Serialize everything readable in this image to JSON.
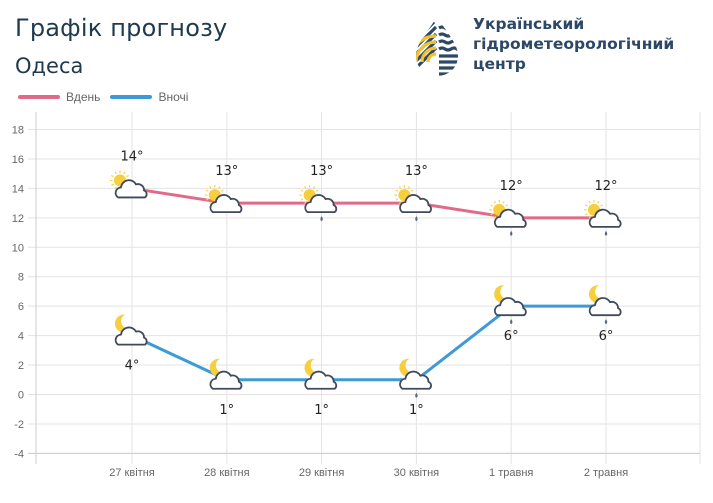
{
  "header": {
    "title": "Графік прогнозу",
    "city": "Одеса"
  },
  "logo": {
    "icon": "drop-logo-icon",
    "org_line1": "Український",
    "org_line2": "гідрометеорологічний",
    "org_line3": "центр"
  },
  "legend": [
    {
      "label": "Вдень",
      "color": "#e06b88"
    },
    {
      "label": "Вночі",
      "color": "#3d9ad6"
    }
  ],
  "chart_data": {
    "type": "line",
    "title": "Графік прогнозу — Одеса",
    "categories": [
      "27 квітня",
      "28 квітня",
      "29 квітня",
      "30 квітня",
      "1 травня",
      "2 травня"
    ],
    "series": [
      {
        "name": "Вдень",
        "color": "#e06b88",
        "values": [
          14,
          13,
          13,
          13,
          12,
          12
        ],
        "labels": [
          "14°",
          "13°",
          "13°",
          "13°",
          "12°",
          "12°"
        ],
        "icons": [
          "partly-cloudy-day",
          "partly-cloudy-day",
          "partly-cloudy-day-rain",
          "partly-cloudy-day-rain",
          "partly-cloudy-day-rain",
          "partly-cloudy-day-rain"
        ]
      },
      {
        "name": "Вночі",
        "color": "#3d9ad6",
        "values": [
          4,
          1,
          1,
          1,
          6,
          6
        ],
        "labels": [
          "4°",
          "1°",
          "1°",
          "1°",
          "6°",
          "6°"
        ],
        "icons": [
          "partly-cloudy-night",
          "partly-cloudy-night",
          "partly-cloudy-night",
          "partly-cloudy-night-rain",
          "partly-cloudy-night-rain",
          "partly-cloudy-night-rain"
        ]
      }
    ],
    "yticks": [
      18,
      16,
      14,
      12,
      10,
      8,
      6,
      4,
      2,
      0,
      -2,
      -4
    ],
    "ylim": [
      -4,
      18
    ],
    "xlabel": "",
    "ylabel": "",
    "grid": true,
    "legend_position": "top-left"
  }
}
